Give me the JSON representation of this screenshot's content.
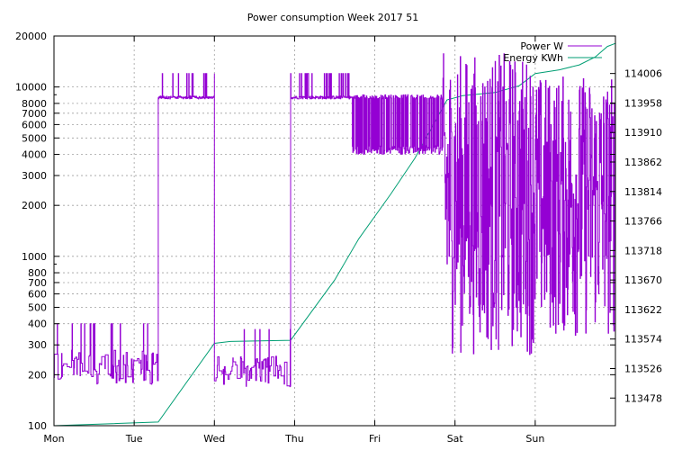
{
  "chart_data": {
    "type": "line",
    "title": "Power consumption Week 2017 51",
    "x_categories": [
      "Mon",
      "Tue",
      "Wed",
      "Thu",
      "Fri",
      "Sat",
      "Sun"
    ],
    "x_range_days": [
      0,
      7
    ],
    "y_left": {
      "scale": "log",
      "range": [
        100,
        20000
      ],
      "ticks": [
        100,
        200,
        300,
        400,
        500,
        600,
        700,
        800,
        1000,
        2000,
        3000,
        4000,
        5000,
        6000,
        7000,
        8000,
        10000,
        20000
      ],
      "tick_labels": [
        "100",
        "200",
        "300",
        "400",
        "500",
        "600",
        "700",
        "800",
        "1000",
        "2000",
        "3000",
        "4000",
        "5000",
        "6000",
        "7000",
        "8000",
        "10000",
        "20000"
      ]
    },
    "y_right": {
      "scale": "linear",
      "range": [
        113433,
        114067
      ],
      "ticks": [
        113478,
        113526,
        113574,
        113622,
        113670,
        113718,
        113766,
        113814,
        113862,
        113910,
        113958,
        114006
      ],
      "tick_labels": [
        "113478",
        "113526",
        "113574",
        "113622",
        "113670",
        "113718",
        "113766",
        "113814",
        "113862",
        "113910",
        "113958",
        "114006"
      ]
    },
    "grid": true,
    "legend_position": "top-right",
    "series": [
      {
        "name": "Power W",
        "axis": "left",
        "color": "#9400d3",
        "segments": [
          {
            "start": 0.0,
            "end": 1.3,
            "min": 175,
            "max": 400,
            "mode": "noise"
          },
          {
            "start": 1.3,
            "end": 2.0,
            "min": 8500,
            "max": 12000,
            "mode": "plateau"
          },
          {
            "start": 2.0,
            "end": 2.95,
            "min": 170,
            "max": 370,
            "mode": "noise"
          },
          {
            "start": 2.95,
            "end": 3.72,
            "min": 8500,
            "max": 12000,
            "mode": "plateau"
          },
          {
            "start": 3.72,
            "end": 4.85,
            "min": 4000,
            "max": 9000,
            "mode": "toggle"
          },
          {
            "start": 4.85,
            "end": 6.0,
            "min": 260,
            "max": 16000,
            "mode": "wild"
          },
          {
            "start": 6.0,
            "end": 7.0,
            "min": 320,
            "max": 12000,
            "mode": "wild"
          }
        ]
      },
      {
        "name": "Energy KWh",
        "axis": "right",
        "color": "#009e73",
        "points": [
          [
            0.0,
            113433
          ],
          [
            1.3,
            113439
          ],
          [
            2.0,
            113567
          ],
          [
            2.2,
            113570
          ],
          [
            2.95,
            113572
          ],
          [
            3.5,
            113670
          ],
          [
            3.8,
            113737
          ],
          [
            4.2,
            113810
          ],
          [
            4.5,
            113868
          ],
          [
            4.9,
            113963
          ],
          [
            5.1,
            113970
          ],
          [
            5.5,
            113975
          ],
          [
            5.8,
            113986
          ],
          [
            6.0,
            114006
          ],
          [
            6.3,
            114012
          ],
          [
            6.55,
            114020
          ],
          [
            6.75,
            114033
          ],
          [
            6.9,
            114050
          ],
          [
            7.0,
            114055
          ]
        ],
        "legend_level": 114012
      }
    ]
  }
}
